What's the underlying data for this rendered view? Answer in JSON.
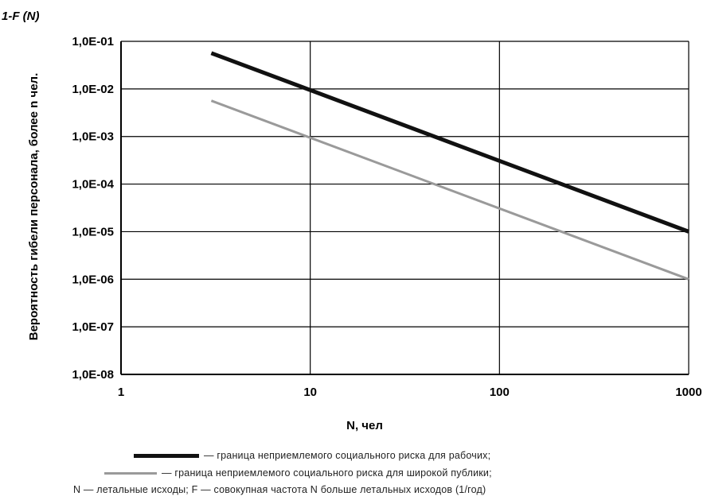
{
  "chart_data": {
    "type": "line",
    "scale": {
      "x": "log",
      "y": "log"
    },
    "xlim": [
      1,
      1000
    ],
    "ylim": [
      1e-08,
      0.1
    ],
    "x_ticks": [
      {
        "value": 1,
        "label": "1"
      },
      {
        "value": 10,
        "label": "10"
      },
      {
        "value": 100,
        "label": "100"
      },
      {
        "value": 1000,
        "label": "1000"
      }
    ],
    "y_ticks": [
      {
        "value": 0.1,
        "label": "1,0E-01"
      },
      {
        "value": 0.01,
        "label": "1,0E-02"
      },
      {
        "value": 0.001,
        "label": "1,0E-03"
      },
      {
        "value": 0.0001,
        "label": "1,0E-04"
      },
      {
        "value": 1e-05,
        "label": "1,0E-05"
      },
      {
        "value": 1e-06,
        "label": "1,0E-06"
      },
      {
        "value": 1e-07,
        "label": "1,0E-07"
      },
      {
        "value": 1e-08,
        "label": "1,0E-08"
      }
    ],
    "grid": true,
    "ylabel_top": "1-F (N)",
    "ylabel": "Вероятность гибели персонала, более n чел.",
    "xlabel": "N, чел",
    "series": [
      {
        "name": "граница неприемлемого социального риска для рабочих;",
        "color": "#111111",
        "x": [
          3,
          1000
        ],
        "y": [
          0.0565,
          1e-05
        ]
      },
      {
        "name": "граница неприемлемого социального риска для широкой публики;",
        "color": "#9a9a9a",
        "x": [
          3,
          1000
        ],
        "y": [
          0.00565,
          1e-06
        ]
      }
    ],
    "legend_position": "bottom",
    "note": "N — летальные исходы; F — совокупная частота N больше летальных исходов (1/год)"
  }
}
